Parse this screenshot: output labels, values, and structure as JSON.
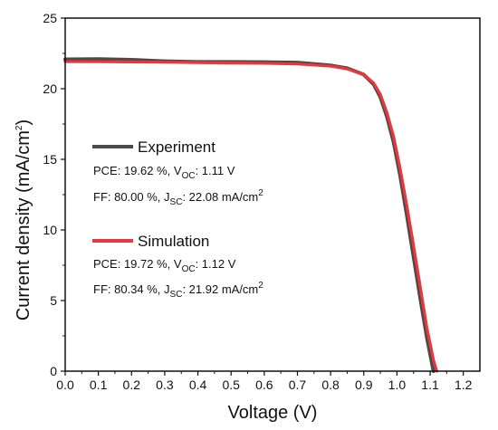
{
  "chart_data": {
    "type": "line",
    "xlabel": "Voltage (V)",
    "ylabel": {
      "base": "Current density (mA/cm",
      "sup": "2",
      "close": ")"
    },
    "xlim": [
      0.0,
      1.25
    ],
    "ylim": [
      0,
      25
    ],
    "xticks": [
      "0.0",
      "0.1",
      "0.2",
      "0.3",
      "0.4",
      "0.5",
      "0.6",
      "0.7",
      "0.8",
      "0.9",
      "1.0",
      "1.1",
      "1.2"
    ],
    "yticks": [
      "0",
      "5",
      "10",
      "15",
      "20",
      "25"
    ],
    "series": [
      {
        "name": "Experiment",
        "color": "#4a4a4a",
        "stats": {
          "line1": {
            "pce": "PCE: 19.62 %, V",
            "voc_sub": "OC",
            "voc": ": 1.11 V"
          },
          "line2": {
            "ff": "FF: 80.00 %, J",
            "jsc_sub": "SC",
            "jsc": ": 22.08 mA/cm",
            "sup": "2"
          }
        },
        "x": [
          0.0,
          0.1,
          0.2,
          0.3,
          0.4,
          0.5,
          0.6,
          0.7,
          0.8,
          0.85,
          0.9,
          0.93,
          0.95,
          0.97,
          0.99,
          1.01,
          1.03,
          1.05,
          1.07,
          1.09,
          1.105,
          1.11
        ],
        "y": [
          22.08,
          22.1,
          22.05,
          21.95,
          21.9,
          21.9,
          21.88,
          21.85,
          21.65,
          21.45,
          21.0,
          20.3,
          19.4,
          18.0,
          16.2,
          13.8,
          11.0,
          8.1,
          5.2,
          2.4,
          0.6,
          0.0
        ]
      },
      {
        "name": "Simulation",
        "color": "#e8383d",
        "stats": {
          "line1": {
            "pce": "PCE: 19.72 %, V",
            "voc_sub": "OC",
            "voc": ": 1.12 V"
          },
          "line2": {
            "ff": "FF: 80.34 %, J",
            "jsc_sub": "SC",
            "jsc": ": 21.92 mA/cm",
            "sup": "2"
          }
        },
        "x": [
          0.0,
          0.1,
          0.2,
          0.3,
          0.4,
          0.5,
          0.6,
          0.7,
          0.8,
          0.85,
          0.9,
          0.93,
          0.95,
          0.97,
          0.99,
          1.01,
          1.03,
          1.05,
          1.07,
          1.09,
          1.11,
          1.12
        ],
        "y": [
          21.92,
          21.91,
          21.9,
          21.88,
          21.85,
          21.82,
          21.8,
          21.75,
          21.6,
          21.4,
          21.0,
          20.4,
          19.6,
          18.3,
          16.6,
          14.3,
          11.7,
          8.9,
          6.0,
          3.1,
          0.8,
          0.0
        ]
      }
    ]
  }
}
